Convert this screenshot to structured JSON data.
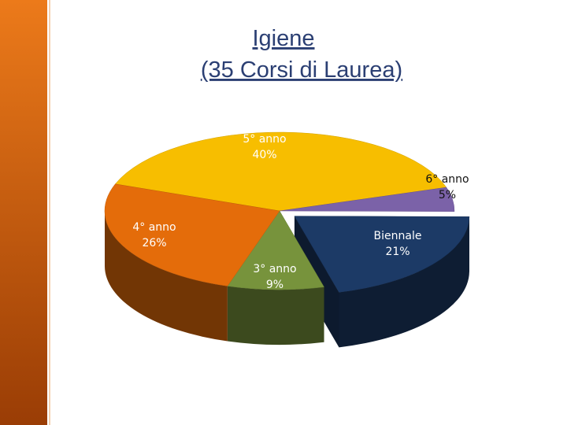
{
  "chart_data": {
    "type": "pie3d",
    "title": "Igiene",
    "subtitle": "(35 Corsi di Laurea)",
    "categories": [
      "5° anno",
      "6° anno",
      "Biennale",
      "3° anno",
      "4° anno"
    ],
    "values": [
      40,
      5,
      21,
      9,
      26
    ],
    "value_labels": [
      "40%",
      "5%",
      "21%",
      "9%",
      "26%"
    ],
    "colors": [
      "#f7be00",
      "#7b62a8",
      "#1c3a66",
      "#77933c",
      "#e46c0a"
    ],
    "exploded": "Biennale"
  }
}
